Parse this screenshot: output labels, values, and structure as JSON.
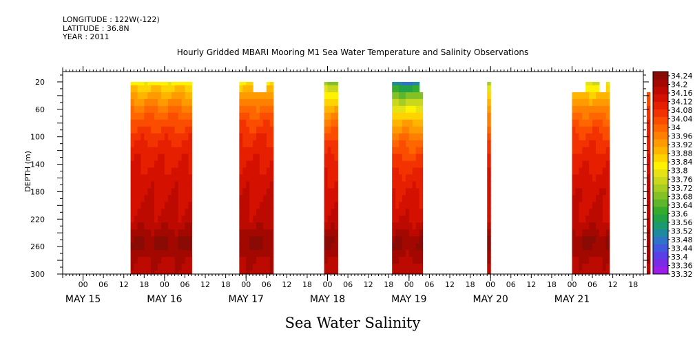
{
  "meta": {
    "longitude": "LONGITUDE : 122W(-122)",
    "latitude": "LATITUDE : 36.8N",
    "year": "YEAR : 2011"
  },
  "colors": {
    "palette": [
      "#9b1fe8",
      "#7b2be6",
      "#5a3ee6",
      "#3f58dd",
      "#2f72c8",
      "#1f8a9e",
      "#1a9a6e",
      "#21a246",
      "#37ab2d",
      "#5db62b",
      "#84c126",
      "#a8cd22",
      "#c9d81c",
      "#e7e214",
      "#fff200",
      "#ffd300",
      "#ffb400",
      "#ff9a00",
      "#ff8000",
      "#ff6600",
      "#fb4d00",
      "#f23300",
      "#e61f00",
      "#d41100",
      "#bd0a00",
      "#a20800",
      "#8a0a05"
    ]
  },
  "chart_data": {
    "type": "heatmap",
    "title": "Hourly Gridded MBARI Mooring M1 Sea Water Temperature and Salinity Observations",
    "xlabel": "Sea Water Salinity",
    "ylabel": "DEPTH (m)",
    "y_ticks": [
      "20",
      "60",
      "100",
      "140",
      "180",
      "220",
      "260",
      "300"
    ],
    "y_range": [
      5,
      300
    ],
    "y_reversed": true,
    "x_hour_ticks": [
      "00",
      "06",
      "12",
      "18",
      "00",
      "06",
      "12",
      "18",
      "00",
      "06",
      "12",
      "18",
      "00",
      "06",
      "12",
      "18",
      "00",
      "06",
      "12",
      "18",
      "00",
      "06",
      "12",
      "18",
      "00",
      "06",
      "12",
      "18"
    ],
    "x_day_labels": [
      "MAY 15",
      "MAY 16",
      "MAY 17",
      "MAY 18",
      "MAY 19",
      "MAY 20",
      "MAY 21"
    ],
    "x_range_hours": [
      -6,
      165
    ],
    "colorbar_labels": [
      "34.24",
      "34.2",
      "34.16",
      "34.12",
      "34.08",
      "34.04",
      "34",
      "33.96",
      "33.92",
      "33.88",
      "33.84",
      "33.8",
      "33.76",
      "33.72",
      "33.68",
      "33.64",
      "33.6",
      "33.56",
      "33.52",
      "33.48",
      "33.44",
      "33.4",
      "33.36",
      "33.32"
    ],
    "colorbar_range": [
      33.32,
      34.26
    ],
    "depths": [
      20,
      30,
      40,
      50,
      60,
      70,
      80,
      90,
      100,
      110,
      120,
      130,
      140,
      150,
      160,
      170,
      180,
      190,
      200,
      210,
      220,
      230,
      240,
      250,
      260,
      270,
      280,
      290,
      300
    ],
    "segments": [
      {
        "start_hour": 14,
        "end_hour": 32,
        "surface": 33.82,
        "gaps": []
      },
      {
        "start_hour": 46,
        "end_hour": 56,
        "surface": 33.84,
        "gaps": [
          {
            "start_hour": 50,
            "end_hour": 54,
            "depth_to": 40
          }
        ]
      },
      {
        "start_hour": 71,
        "end_hour": 75,
        "surface": 33.7,
        "gaps": []
      },
      {
        "start_hour": 91,
        "end_hour": 100,
        "surface": 33.5,
        "gaps": [
          {
            "start_hour": 99,
            "end_hour": 100,
            "depth_to": 40
          }
        ]
      },
      {
        "start_hour": 119,
        "end_hour": 120,
        "surface": 33.72,
        "gaps": []
      },
      {
        "start_hour": 144,
        "end_hour": 155,
        "surface": 33.78,
        "gaps": [
          {
            "start_hour": 144,
            "end_hour": 148,
            "depth_to": 40
          },
          {
            "start_hour": 152,
            "end_hour": 154,
            "depth_to": 40
          }
        ]
      },
      {
        "start_hour": 166,
        "end_hour": 167,
        "surface": 33.95,
        "gaps": [
          {
            "start_hour": 166,
            "end_hour": 167,
            "depth_to": 40
          }
        ]
      }
    ]
  }
}
